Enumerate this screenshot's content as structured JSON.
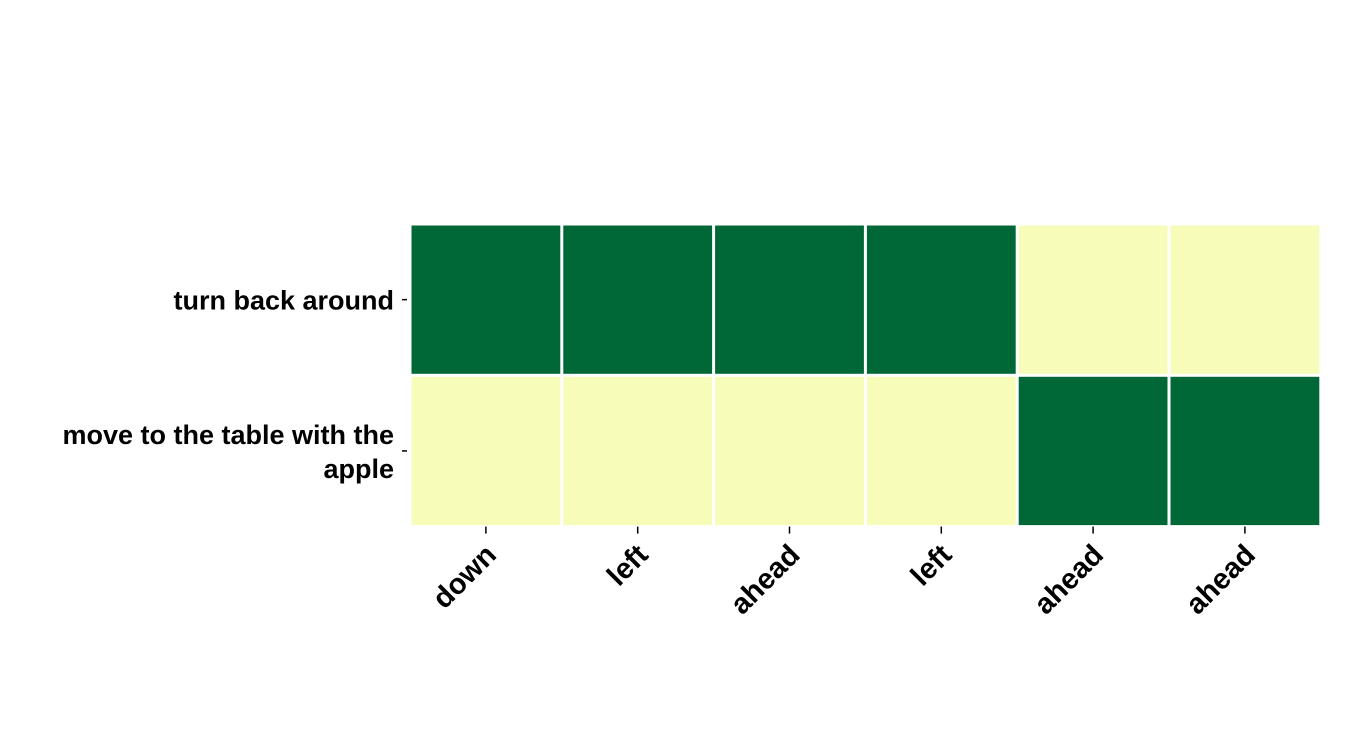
{
  "chart_data": {
    "type": "heatmap",
    "rows": [
      [
        "turn back around"
      ],
      [
        "move to the table with the",
        "apple"
      ]
    ],
    "columns": [
      "down",
      "left",
      "ahead",
      "left",
      "ahead",
      "ahead"
    ],
    "values": [
      [
        1,
        1,
        1,
        1,
        0,
        0
      ],
      [
        0,
        0,
        0,
        0,
        1,
        1
      ]
    ],
    "colors": {
      "high": "#006837",
      "low": "#f7fcb9",
      "cell_border": "#ffffff"
    },
    "title": "",
    "xlabel": "",
    "ylabel": "",
    "legend": "none"
  }
}
